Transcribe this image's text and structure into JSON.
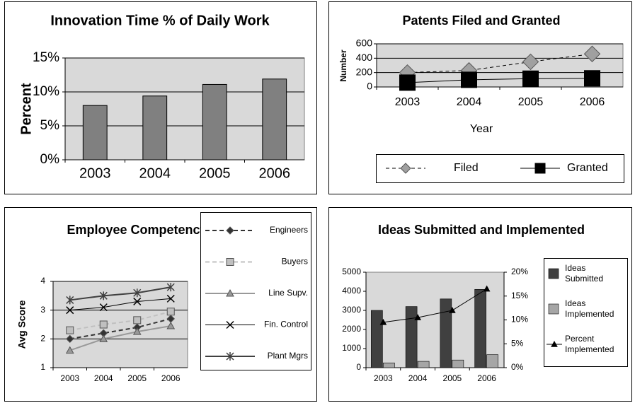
{
  "chart_data": [
    {
      "type": "bar",
      "title": "Innovation Time % of Daily Work",
      "ylabel": "Percent",
      "categories": [
        "2003",
        "2004",
        "2005",
        "2006"
      ],
      "values": [
        8,
        9.4,
        11.1,
        11.9
      ],
      "color": "#808080",
      "ylim": [
        0,
        15
      ],
      "yticks": [
        {
          "value": 0,
          "label": "0%"
        },
        {
          "value": 5,
          "label": "5%"
        },
        {
          "value": 10,
          "label": "10%"
        },
        {
          "value": 15,
          "label": "15%"
        }
      ],
      "grid": true
    },
    {
      "type": "line",
      "title": "Patents Filed and Granted",
      "ylabel": "Number",
      "xlabel": "Year",
      "categories": [
        "2003",
        "2004",
        "2005",
        "2006"
      ],
      "series": [
        {
          "name": "Filed",
          "color": "#a0a0a0",
          "marker": "diamond",
          "dashed": true,
          "values": [
            200,
            230,
            350,
            460
          ]
        },
        {
          "name": "Granted",
          "color": "#000000",
          "marker": "square",
          "dashed": false,
          "values": [
            60,
            100,
            115,
            120
          ]
        }
      ],
      "ylim": [
        0,
        600
      ],
      "yticks": [
        0,
        200,
        400,
        600
      ],
      "grid": true,
      "legend": "bottom"
    },
    {
      "type": "line",
      "title": "Employee Competency Scores",
      "ylabel": "Avg Score",
      "categories": [
        "2003",
        "2004",
        "2005",
        "2006"
      ],
      "series": [
        {
          "name": "Engineers",
          "color": "#333333",
          "marker": "diamond",
          "dashed": true,
          "values": [
            2.0,
            2.2,
            2.4,
            2.7
          ]
        },
        {
          "name": "Buyers",
          "color": "#c0c0c0",
          "marker": "square",
          "dashed": true,
          "values": [
            2.3,
            2.5,
            2.65,
            2.95
          ]
        },
        {
          "name": "Line Supv.",
          "color": "#999999",
          "marker": "triangle",
          "dashed": false,
          "values": [
            1.6,
            2.0,
            2.25,
            2.45
          ]
        },
        {
          "name": "Fin. Control",
          "color": "#000000",
          "marker": "x",
          "dashed": false,
          "values": [
            3.0,
            3.1,
            3.3,
            3.4
          ]
        },
        {
          "name": "Plant Mgrs",
          "color": "#404040",
          "marker": "asterisk",
          "dashed": false,
          "values": [
            3.35,
            3.5,
            3.6,
            3.8
          ]
        }
      ],
      "ylim": [
        1,
        4
      ],
      "yticks": [
        1,
        2,
        3,
        4
      ],
      "grid": true,
      "legend": "right"
    },
    {
      "type": "bar",
      "title": "Ideas Submitted and Implemented",
      "categories": [
        "2003",
        "2004",
        "2005",
        "2006"
      ],
      "series": [
        {
          "name": "Ideas Submitted",
          "color": "#404040",
          "values": [
            3000,
            3200,
            3600,
            4100
          ]
        },
        {
          "name": "Ideas Implemented",
          "color": "#a6a6a6",
          "values": [
            250,
            330,
            400,
            680
          ]
        },
        {
          "name": "Percent Implemented",
          "color": "#000000",
          "type": "line",
          "marker": "triangle",
          "axis": "y2",
          "values": [
            9.5,
            10.5,
            12,
            16.5
          ]
        }
      ],
      "ylim": [
        0,
        5000
      ],
      "yticks": [
        0,
        1000,
        2000,
        3000,
        4000,
        5000
      ],
      "y2lim": [
        0,
        20
      ],
      "y2ticks": [
        {
          "value": 0,
          "label": "0%"
        },
        {
          "value": 5,
          "label": "5%"
        },
        {
          "value": 10,
          "label": "10%"
        },
        {
          "value": 15,
          "label": "15%"
        },
        {
          "value": 20,
          "label": "20%"
        }
      ],
      "grid": false,
      "legend": "right"
    }
  ]
}
